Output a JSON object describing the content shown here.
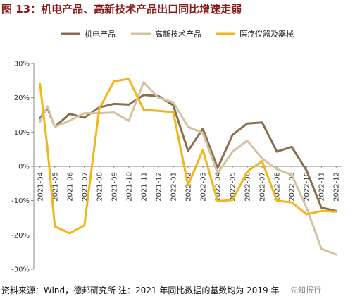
{
  "header": {
    "title": "图 13：机电产品、高新技术产品出口同比增速走弱"
  },
  "footer": {
    "source": "资料来源：Wind，德邦研究所 注：2021 年同比数据的基数均为 2019 年",
    "watermark": "先知报行"
  },
  "chart_data": {
    "type": "line",
    "title": "",
    "xlabel": "",
    "ylabel": "",
    "ylim": [
      -30,
      30
    ],
    "yticks": [
      "30%",
      "20%",
      "10%",
      "0%",
      "-10%",
      "-20%",
      "-30%"
    ],
    "ytick_values": [
      30,
      20,
      10,
      0,
      -10,
      -20,
      -30
    ],
    "grid": false,
    "legend_position": "top",
    "x_tick_labels": [
      "2021-04",
      "2021-05",
      "2021-06",
      "2021-07",
      "2021-08",
      "2021-09",
      "2021-10",
      "2021-11",
      "2021-12",
      "2022-01",
      "2022-02",
      "2022-03",
      "2022-04",
      "2022-05",
      "2022-06",
      "2022-07",
      "2022-08",
      "2022-09",
      "2022-10",
      "2022-11",
      "2022-12"
    ],
    "x": [
      0,
      0.5,
      1,
      1.5,
      2,
      2.5,
      3,
      3.5,
      4,
      4.5,
      5,
      5.5,
      6,
      6.5,
      7,
      7.5,
      8,
      8.5,
      9,
      9.5,
      10,
      10.5,
      11,
      11.5,
      12,
      12.5,
      13,
      13.5,
      14,
      14.5,
      15,
      15.5,
      16,
      16.5,
      17,
      17.5,
      18,
      18.5,
      19,
      19.5,
      20
    ],
    "series": [
      {
        "name": "机电产品",
        "color": "#8B6E4E",
        "values": [
          14,
          17,
          11.5,
          null,
          15.3,
          null,
          14.2,
          null,
          17.2,
          null,
          18.2,
          null,
          18,
          null,
          20.8,
          null,
          20.5,
          null,
          17.8,
          null,
          4.5,
          null,
          11,
          null,
          -0.5,
          null,
          9.2,
          null,
          12.5,
          null,
          12.8,
          null,
          4.3,
          null,
          5.7,
          null,
          -1.2,
          null,
          -12,
          null,
          -13
        ]
      },
      {
        "name": "高新技术产品",
        "color": "#D4C3A2",
        "values": [
          13,
          17.5,
          11.5,
          null,
          13.3,
          null,
          15.5,
          null,
          15.5,
          null,
          15.7,
          null,
          13.3,
          null,
          24.5,
          null,
          20,
          null,
          18.7,
          null,
          11.5,
          null,
          9.7,
          null,
          -2,
          null,
          4.3,
          null,
          7.5,
          null,
          2.3,
          null,
          -0.8,
          null,
          -2.5,
          null,
          -12,
          null,
          -24,
          null,
          -25.7
        ]
      },
      {
        "name": "医疗仪器及器械",
        "color": "#F2B61A",
        "values": [
          24,
          5.5,
          -17.5,
          null,
          -19.5,
          null,
          -17.2,
          null,
          16.8,
          null,
          24.8,
          null,
          25.5,
          null,
          16.5,
          null,
          16.2,
          null,
          15.8,
          null,
          -5.5,
          null,
          4.8,
          null,
          -10.2,
          null,
          -9.8,
          null,
          -1.5,
          null,
          1.5,
          null,
          -10,
          null,
          -10.5,
          null,
          -14,
          null,
          -13,
          null,
          -13.2
        ]
      }
    ]
  }
}
